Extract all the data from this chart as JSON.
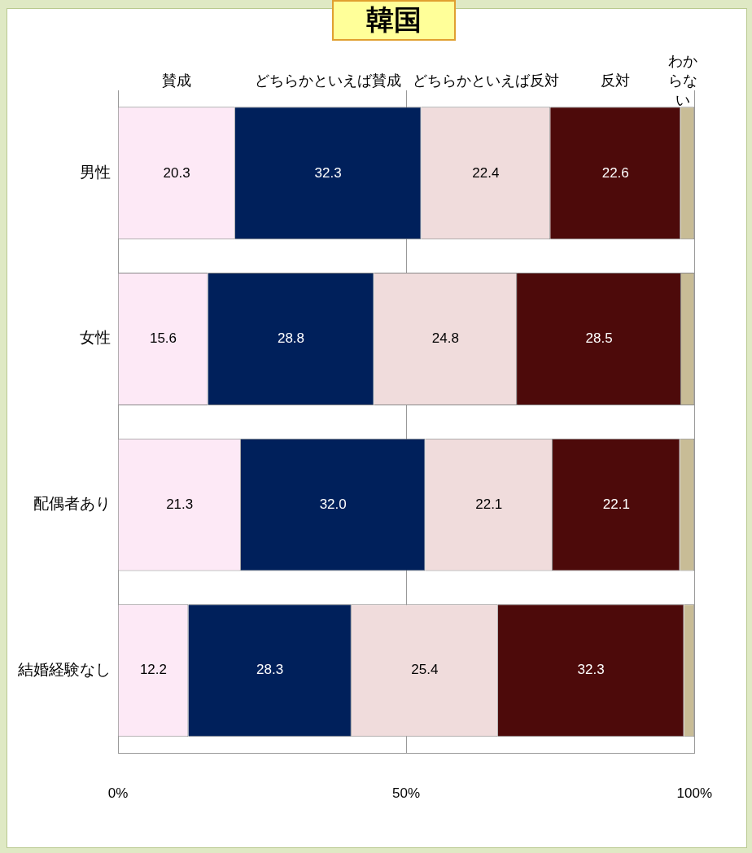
{
  "chart_data": {
    "type": "bar",
    "title": "韓国",
    "orientation": "horizontal",
    "stacked": true,
    "categories": [
      "男性",
      "女性",
      "配偶者あり",
      "結婚経験なし"
    ],
    "series": [
      {
        "name": "賛成",
        "color": "#fde9f6",
        "values": [
          20.3,
          15.6,
          21.3,
          12.2
        ],
        "value_labels": [
          "20.3",
          "15.6",
          "21.3",
          "12.2"
        ]
      },
      {
        "name": "どちらかといえば賛成",
        "color": "#00205b",
        "values": [
          32.3,
          28.8,
          32.0,
          28.3
        ],
        "value_labels": [
          "32.3",
          "28.8",
          "32.0",
          "28.3"
        ]
      },
      {
        "name": "どちらかといえば反対",
        "color": "#f0dcdc",
        "values": [
          22.4,
          24.8,
          22.1,
          25.4
        ],
        "value_labels": [
          "22.4",
          "24.8",
          "22.1",
          "25.4"
        ]
      },
      {
        "name": "反対",
        "color": "#4d0a0a",
        "values": [
          22.6,
          28.5,
          22.1,
          32.3
        ],
        "value_labels": [
          "22.6",
          "28.5",
          "22.1",
          "32.3"
        ]
      },
      {
        "name": "わからない",
        "color": "#c8bc96",
        "values": [
          2.4,
          2.3,
          2.5,
          1.8
        ]
      }
    ],
    "xlim": [
      0,
      100
    ],
    "xticks": [
      {
        "value": 0,
        "label": "0%"
      },
      {
        "value": 50,
        "label": "50%"
      },
      {
        "value": 100,
        "label": "100%"
      }
    ],
    "grid": "x",
    "legend": "top"
  }
}
